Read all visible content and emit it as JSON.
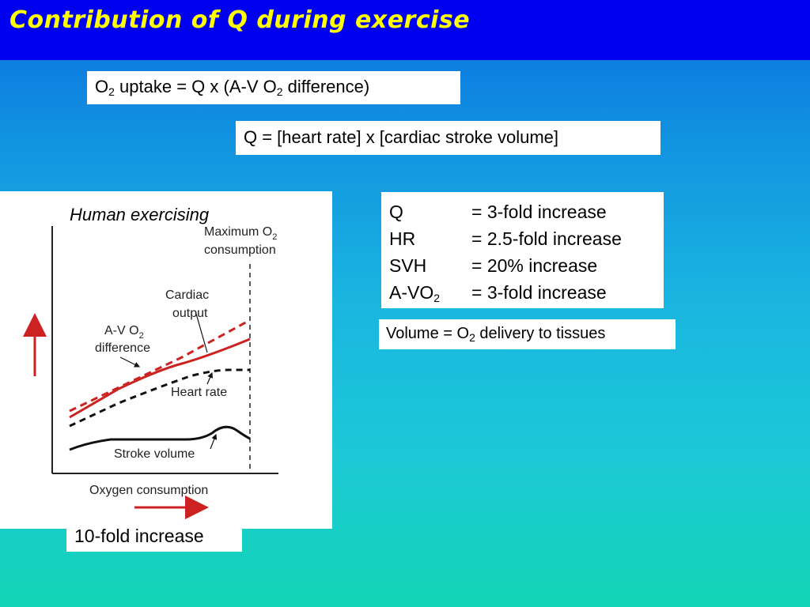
{
  "slide": {
    "title": "Contribution of Q during exercise"
  },
  "equations": {
    "eq1": {
      "o": "O",
      "sub1": "2",
      "mid": " uptake = Q x (A-V O",
      "sub2": "2",
      "end": " difference)"
    },
    "eq2": "Q = [heart rate] x [cardiac stroke volume]"
  },
  "stats": {
    "rows": [
      {
        "key": "Q",
        "value": "= 3-fold increase"
      },
      {
        "key": "HR",
        "value": "= 2.5-fold increase"
      },
      {
        "key": "SVH",
        "value": "= 20% increase"
      },
      {
        "key_main": "A-VO",
        "key_sub": "2",
        "value": "= 3-fold increase"
      }
    ]
  },
  "delivery": {
    "pre": "Volume = O",
    "sub": "2",
    "post": " delivery to tissues"
  },
  "tenfold": "10-fold increase",
  "figure": {
    "caption": "Human exercising",
    "max_o2_line1": "Maximum O",
    "max_o2_sub": "2",
    "max_o2_line2": "consumption",
    "cardiac_output_line1": "Cardiac",
    "cardiac_output_line2": "output",
    "av_line1": "A-V O",
    "av_sub": "2",
    "av_line2": "difference",
    "heart_rate": "Heart rate",
    "stroke_volume": "Stroke volume",
    "x_axis_label": "Oxygen consumption",
    "colors": {
      "red": "#cc2222",
      "black": "#111111"
    }
  }
}
